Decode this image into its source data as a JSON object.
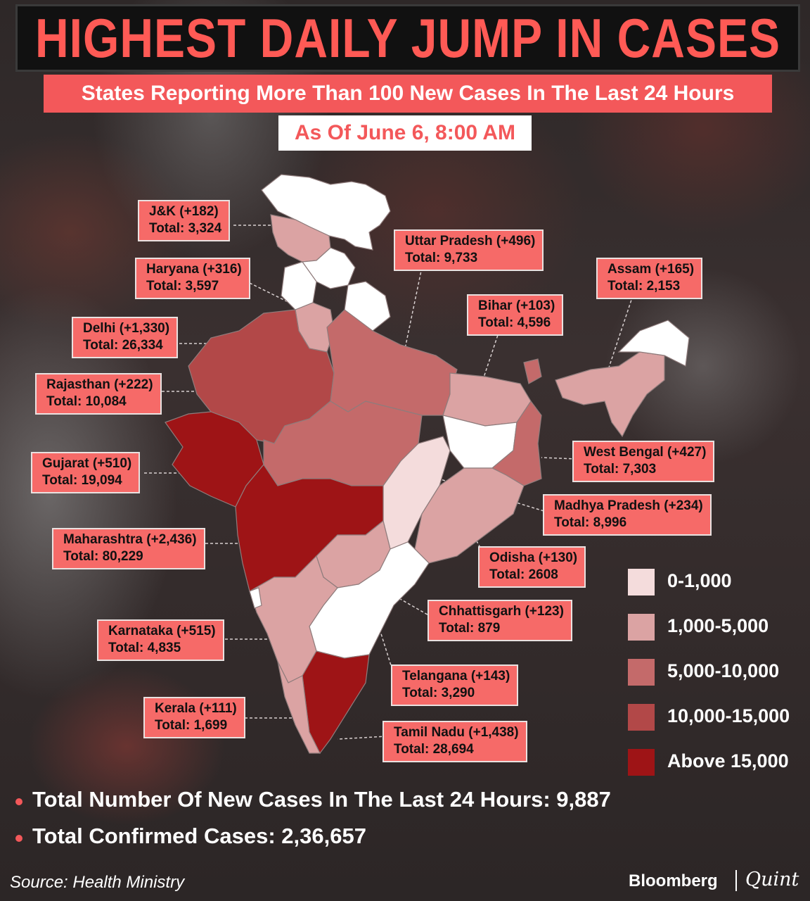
{
  "title": "HIGHEST DAILY JUMP IN CASES",
  "subtitle": "States Reporting More Than 100 New Cases In The Last 24 Hours",
  "date": "As Of June 6, 8:00 AM",
  "colors": {
    "accent": "#f3585a",
    "label_bg": "#f66a68",
    "band_0": "#f4dcdc",
    "band_1": "#dba3a3",
    "band_2": "#c46a6a",
    "band_3": "#b24848",
    "band_4": "#9e1416",
    "no_data": "#ffffff"
  },
  "states": [
    {
      "name": "J&K",
      "new": "(+182)",
      "total": "3,324",
      "band": 1
    },
    {
      "name": "Haryana",
      "new": "(+316)",
      "total": "3,597",
      "band": 1
    },
    {
      "name": "Delhi",
      "new": "(+1,330)",
      "total": "26,334",
      "band": 4
    },
    {
      "name": "Rajasthan",
      "new": "(+222)",
      "total": "10,084",
      "band": 3
    },
    {
      "name": "Gujarat",
      "new": "(+510)",
      "total": "19,094",
      "band": 4
    },
    {
      "name": "Maharashtra",
      "new": "(+2,436)",
      "total": "80,229",
      "band": 4
    },
    {
      "name": "Karnataka",
      "new": "(+515)",
      "total": "4,835",
      "band": 1
    },
    {
      "name": "Kerala",
      "new": "(+111)",
      "total": "1,699",
      "band": 1
    },
    {
      "name": "Uttar Pradesh",
      "new": "(+496)",
      "total": "9,733",
      "band": 2
    },
    {
      "name": "Bihar",
      "new": "(+103)",
      "total": "4,596",
      "band": 1
    },
    {
      "name": "Assam",
      "new": "(+165)",
      "total": "2,153",
      "band": 1
    },
    {
      "name": "West Bengal",
      "new": "(+427)",
      "total": "7,303",
      "band": 2
    },
    {
      "name": "Madhya Pradesh",
      "new": "(+234)",
      "total": "8,996",
      "band": 2
    },
    {
      "name": "Odisha",
      "new": "(+130)",
      "total": "2608",
      "band": 1
    },
    {
      "name": "Chhattisgarh",
      "new": "(+123)",
      "total": "879",
      "band": 0
    },
    {
      "name": "Telangana",
      "new": "(+143)",
      "total": "3,290",
      "band": 1
    },
    {
      "name": "Tamil Nadu",
      "new": "(+1,438)",
      "total": "28,694",
      "band": 4
    }
  ],
  "total_prefix": "Total: ",
  "legend": [
    "0-1,000",
    "1,000-5,000",
    "5,000-10,000",
    "10,000-15,000",
    "Above 15,000"
  ],
  "summary": {
    "new_cases": "Total Number Of New Cases In The Last 24 Hours: 9,887",
    "confirmed": "Total Confirmed Cases: 2,36,657"
  },
  "source": "Source: Health Ministry",
  "brand": {
    "left": "Bloomberg",
    "right": "Quint"
  }
}
